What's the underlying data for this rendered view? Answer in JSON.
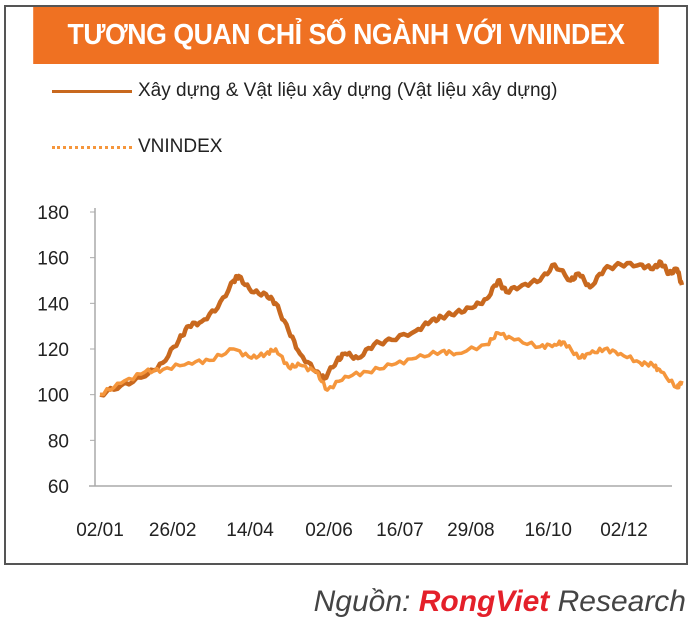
{
  "title": "TƯƠNG QUAN CHỈ SỐ NGÀNH VỚI VNINDEX",
  "source": {
    "prefix": "Nguồn: ",
    "brand": "RongViet",
    "suffix": " Research"
  },
  "chart_data": {
    "type": "line",
    "title": "TƯƠNG QUAN CHỈ SỐ NGÀNH VỚI VNINDEX",
    "ylim": [
      60,
      180
    ],
    "yticks": [
      60,
      80,
      100,
      120,
      140,
      160,
      180
    ],
    "xticks": [
      "02/01",
      "26/02",
      "14/04",
      "02/06",
      "16/07",
      "29/08",
      "16/10",
      "02/12"
    ],
    "grid": false,
    "legend_placement": "top-left",
    "series": [
      {
        "name": "Xây dựng & Vật liệu xây dựng (Vật liệu xây dựng)",
        "color": "#c8681e",
        "style": "solid",
        "x": [
          "02/01",
          "15/01",
          "30/01",
          "10/02",
          "20/02",
          "26/02",
          "05/03",
          "15/03",
          "25/03",
          "28/03",
          "05/04",
          "14/04",
          "20/04",
          "28/04",
          "05/05",
          "15/05",
          "20/05",
          "28/05",
          "02/06",
          "10/06",
          "20/06",
          "01/07",
          "16/07",
          "25/07",
          "01/08",
          "10/08",
          "20/08",
          "29/08",
          "05/09",
          "10/09",
          "20/09",
          "01/10",
          "10/10",
          "20/10",
          "25/10",
          "01/11",
          "10/11",
          "20/11",
          "02/12",
          "10/12",
          "15/12",
          "20/12",
          "25/12",
          "28/12"
        ],
        "values": [
          100,
          104,
          108,
          114,
          124,
          130,
          132,
          138,
          150,
          152,
          145,
          144,
          140,
          128,
          118,
          110,
          107,
          115,
          118,
          116,
          122,
          124,
          128,
          132,
          134,
          136,
          138,
          142,
          150,
          145,
          148,
          150,
          157,
          150,
          153,
          147,
          155,
          157,
          157,
          155,
          158,
          153,
          155,
          148
        ]
      },
      {
        "name": "VNINDEX",
        "color": "#f5963c",
        "style": "dotted",
        "x": [
          "02/01",
          "15/01",
          "30/01",
          "10/02",
          "26/02",
          "10/03",
          "25/03",
          "05/04",
          "14/04",
          "20/04",
          "28/04",
          "05/05",
          "15/05",
          "22/05",
          "02/06",
          "16/06",
          "01/07",
          "16/07",
          "01/08",
          "10/08",
          "29/08",
          "05/09",
          "15/09",
          "01/10",
          "10/10",
          "16/10",
          "25/10",
          "01/11",
          "10/11",
          "20/11",
          "02/12",
          "10/12",
          "15/12",
          "25/12",
          "28/12"
        ],
        "values": [
          100,
          105,
          110,
          111,
          114,
          115,
          120,
          116,
          118,
          120,
          112,
          113,
          110,
          102,
          108,
          110,
          113,
          116,
          119,
          118,
          122,
          127,
          124,
          121,
          122,
          123,
          116,
          118,
          120,
          118,
          114,
          113,
          110,
          103,
          106
        ]
      }
    ]
  }
}
